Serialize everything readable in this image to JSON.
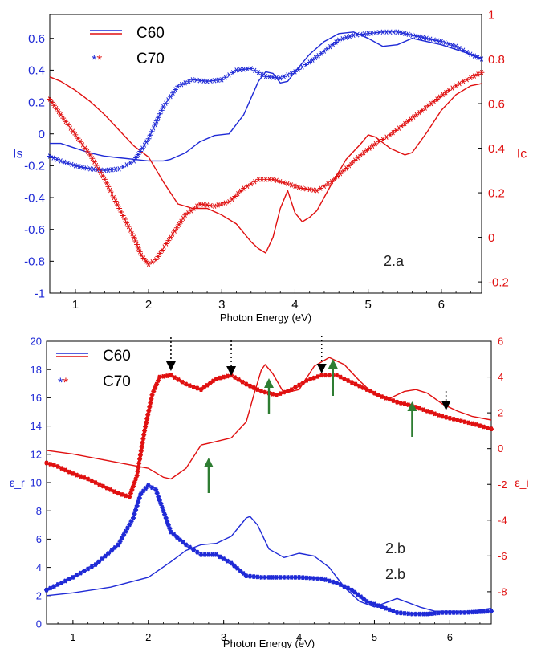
{
  "colors": {
    "blue": "#1f2ad6",
    "red": "#e01010",
    "black": "#000000",
    "green": "#2e7d32"
  },
  "chart_data": [
    {
      "type": "line",
      "xlabel": "Photon Energy (eV)",
      "ylabel": "Is",
      "y2label": "Ic",
      "annotation": "2.a",
      "xlim": [
        0.65,
        6.55
      ],
      "ylim": [
        -1,
        0.75
      ],
      "y2lim": [
        -0.25,
        1.0
      ],
      "xticks": [
        "1",
        "2",
        "3",
        "4",
        "5",
        "6"
      ],
      "yticks": [
        "0.6",
        "0.4",
        "0.2",
        "0",
        "-0.2",
        "-0.4",
        "-0.6",
        "-0.8",
        "-1"
      ],
      "y2ticks": [
        "1",
        "0.8",
        "0.6",
        "0.4",
        "0.2",
        "0",
        "-0.2"
      ],
      "legend": [
        {
          "label": "C60",
          "style": "line"
        },
        {
          "label": "C70",
          "style": "star",
          "marker_text": "**"
        }
      ],
      "legend_position": "top-left",
      "series": [
        {
          "name": "C60",
          "axis": "left",
          "color": "blue",
          "style": "line",
          "x": [
            0.65,
            0.8,
            1.0,
            1.2,
            1.4,
            1.6,
            1.8,
            2.0,
            2.2,
            2.3,
            2.5,
            2.7,
            2.9,
            3.1,
            3.3,
            3.5,
            3.6,
            3.7,
            3.8,
            3.9,
            4.0,
            4.2,
            4.4,
            4.6,
            4.8,
            5.0,
            5.2,
            5.4,
            5.6,
            5.8,
            6.0,
            6.2,
            6.4,
            6.55
          ],
          "y": [
            -0.06,
            -0.06,
            -0.09,
            -0.12,
            -0.14,
            -0.15,
            -0.16,
            -0.17,
            -0.17,
            -0.16,
            -0.12,
            -0.05,
            -0.01,
            0.0,
            0.12,
            0.33,
            0.39,
            0.38,
            0.32,
            0.33,
            0.39,
            0.5,
            0.58,
            0.63,
            0.64,
            0.6,
            0.55,
            0.56,
            0.6,
            0.58,
            0.56,
            0.53,
            0.5,
            0.47
          ]
        },
        {
          "name": "C60 Ic",
          "axis": "right",
          "color": "red",
          "style": "line",
          "x": [
            0.65,
            0.8,
            1.0,
            1.2,
            1.4,
            1.6,
            1.8,
            2.0,
            2.2,
            2.4,
            2.6,
            2.8,
            3.0,
            3.2,
            3.4,
            3.5,
            3.6,
            3.7,
            3.8,
            3.9,
            4.0,
            4.1,
            4.2,
            4.3,
            4.5,
            4.7,
            4.9,
            5.0,
            5.1,
            5.3,
            5.5,
            5.6,
            5.8,
            6.0,
            6.2,
            6.4,
            6.55
          ],
          "y": [
            0.72,
            0.7,
            0.66,
            0.61,
            0.55,
            0.48,
            0.41,
            0.36,
            0.25,
            0.15,
            0.13,
            0.13,
            0.1,
            0.06,
            -0.02,
            -0.05,
            -0.07,
            0.0,
            0.13,
            0.21,
            0.11,
            0.07,
            0.09,
            0.12,
            0.24,
            0.35,
            0.42,
            0.46,
            0.45,
            0.4,
            0.37,
            0.38,
            0.47,
            0.57,
            0.64,
            0.68,
            0.69
          ]
        },
        {
          "name": "C70",
          "axis": "left",
          "color": "blue",
          "style": "star",
          "x": [
            0.65,
            0.8,
            1.0,
            1.2,
            1.4,
            1.6,
            1.8,
            2.0,
            2.2,
            2.4,
            2.6,
            2.8,
            3.0,
            3.2,
            3.4,
            3.6,
            3.8,
            4.0,
            4.2,
            4.4,
            4.6,
            4.8,
            5.0,
            5.2,
            5.4,
            5.6,
            5.8,
            6.0,
            6.2,
            6.4,
            6.55
          ],
          "y": [
            -0.14,
            -0.17,
            -0.2,
            -0.22,
            -0.23,
            -0.22,
            -0.17,
            -0.03,
            0.17,
            0.3,
            0.34,
            0.33,
            0.34,
            0.4,
            0.41,
            0.36,
            0.35,
            0.39,
            0.45,
            0.52,
            0.59,
            0.62,
            0.63,
            0.64,
            0.64,
            0.62,
            0.6,
            0.58,
            0.55,
            0.5,
            0.47
          ]
        },
        {
          "name": "C70 Ic",
          "axis": "right",
          "color": "red",
          "style": "star",
          "x": [
            0.65,
            0.8,
            1.0,
            1.2,
            1.4,
            1.6,
            1.8,
            1.9,
            2.0,
            2.1,
            2.3,
            2.5,
            2.7,
            2.9,
            3.1,
            3.3,
            3.5,
            3.7,
            3.9,
            4.1,
            4.3,
            4.5,
            4.7,
            4.9,
            5.1,
            5.3,
            5.5,
            5.7,
            5.9,
            6.1,
            6.3,
            6.55
          ],
          "y": [
            0.62,
            0.55,
            0.46,
            0.37,
            0.26,
            0.13,
            0.0,
            -0.08,
            -0.12,
            -0.1,
            0.0,
            0.1,
            0.15,
            0.14,
            0.16,
            0.22,
            0.26,
            0.26,
            0.24,
            0.22,
            0.21,
            0.25,
            0.31,
            0.37,
            0.42,
            0.46,
            0.51,
            0.56,
            0.61,
            0.66,
            0.7,
            0.74
          ]
        }
      ]
    },
    {
      "type": "line",
      "xlabel": "Photon Energy (eV)",
      "ylabel": "ε_r",
      "y2label": "ε_i",
      "annotations": [
        "2.b",
        "2.b"
      ],
      "xlim": [
        0.65,
        6.55
      ],
      "ylim": [
        0,
        20
      ],
      "y2lim": [
        -9.8,
        6
      ],
      "xticks": [
        "1",
        "2",
        "3",
        "4",
        "5",
        "6"
      ],
      "yticks": [
        "20",
        "18",
        "16",
        "14",
        "12",
        "10",
        "8",
        "6",
        "4",
        "2",
        "0"
      ],
      "y2ticks": [
        "6",
        "4",
        "2",
        "0",
        "-2",
        "-4",
        "-6",
        "-8"
      ],
      "legend": [
        {
          "label": "C60",
          "style": "line"
        },
        {
          "label": "C70",
          "style": "star",
          "marker_text": "**"
        }
      ],
      "legend_position": "top-left",
      "series": [
        {
          "name": "C60",
          "axis": "left",
          "color": "blue",
          "style": "line",
          "x": [
            0.65,
            1.0,
            1.5,
            2.0,
            2.3,
            2.5,
            2.7,
            2.9,
            3.1,
            3.3,
            3.35,
            3.45,
            3.6,
            3.8,
            4.0,
            4.2,
            4.4,
            4.6,
            4.8,
            5.0,
            5.2,
            5.3,
            5.4,
            5.6,
            5.8,
            6.0,
            6.3,
            6.55
          ],
          "y": [
            2.0,
            2.2,
            2.6,
            3.3,
            4.4,
            5.2,
            5.6,
            5.7,
            6.2,
            7.5,
            7.6,
            7.0,
            5.3,
            4.7,
            5.0,
            4.8,
            4.0,
            2.6,
            1.6,
            1.2,
            1.6,
            1.8,
            1.6,
            1.2,
            0.9,
            0.9,
            0.9,
            1.1
          ]
        },
        {
          "name": "C60 ε_i",
          "axis": "right",
          "color": "red",
          "style": "line",
          "x": [
            0.65,
            1.0,
            1.5,
            2.0,
            2.2,
            2.3,
            2.5,
            2.7,
            2.9,
            3.1,
            3.3,
            3.4,
            3.5,
            3.55,
            3.65,
            3.8,
            4.0,
            4.2,
            4.4,
            4.6,
            4.8,
            5.0,
            5.2,
            5.4,
            5.55,
            5.7,
            5.9,
            6.1,
            6.3,
            6.55
          ],
          "y": [
            -0.1,
            -0.3,
            -0.7,
            -1.1,
            -1.6,
            -1.7,
            -1.1,
            0.2,
            0.4,
            0.6,
            1.5,
            3.0,
            4.4,
            4.7,
            4.2,
            3.1,
            3.3,
            4.6,
            5.1,
            4.7,
            3.8,
            3.0,
            2.8,
            3.2,
            3.3,
            3.1,
            2.5,
            2.1,
            1.8,
            1.6
          ]
        },
        {
          "name": "C70",
          "axis": "left",
          "color": "blue",
          "style": "star",
          "x": [
            0.65,
            1.0,
            1.3,
            1.6,
            1.8,
            1.9,
            2.0,
            2.1,
            2.2,
            2.3,
            2.5,
            2.7,
            2.9,
            3.1,
            3.3,
            3.5,
            3.7,
            4.0,
            4.3,
            4.5,
            4.7,
            4.9,
            5.1,
            5.3,
            5.5,
            5.7,
            5.9,
            6.2,
            6.55
          ],
          "y": [
            2.4,
            3.3,
            4.2,
            5.6,
            7.5,
            9.2,
            9.8,
            9.5,
            8.0,
            6.5,
            5.6,
            4.9,
            4.9,
            4.3,
            3.4,
            3.3,
            3.3,
            3.3,
            3.2,
            2.9,
            2.4,
            1.6,
            1.2,
            0.8,
            0.7,
            0.7,
            0.8,
            0.8,
            0.9
          ]
        },
        {
          "name": "C70 ε_i",
          "axis": "right",
          "color": "red",
          "style": "star",
          "x": [
            0.65,
            0.8,
            1.0,
            1.2,
            1.4,
            1.6,
            1.75,
            1.85,
            1.95,
            2.05,
            2.15,
            2.3,
            2.5,
            2.7,
            2.9,
            3.1,
            3.3,
            3.5,
            3.7,
            3.9,
            4.1,
            4.3,
            4.5,
            4.7,
            4.9,
            5.1,
            5.3,
            5.5,
            5.7,
            5.9,
            6.1,
            6.3,
            6.55
          ],
          "y": [
            -0.8,
            -1.0,
            -1.4,
            -1.7,
            -2.1,
            -2.5,
            -2.7,
            -1.5,
            1.0,
            3.0,
            4.0,
            4.1,
            3.6,
            3.3,
            3.9,
            4.1,
            3.6,
            3.2,
            3.0,
            3.3,
            3.8,
            4.1,
            4.1,
            3.7,
            3.3,
            2.9,
            2.6,
            2.4,
            2.1,
            1.8,
            1.6,
            1.4,
            1.1
          ]
        }
      ]
    }
  ]
}
